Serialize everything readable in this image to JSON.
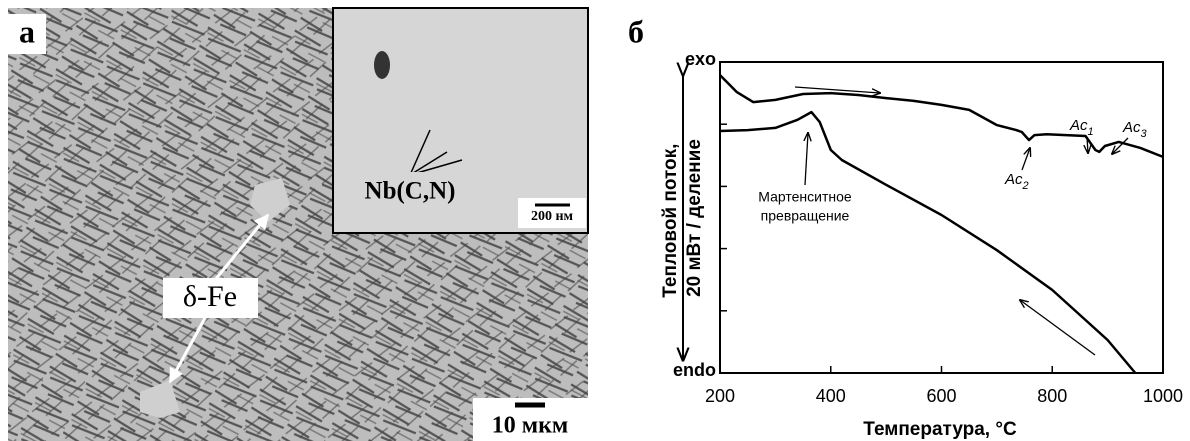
{
  "panel_a": {
    "label": "а",
    "phase_label": "δ-Fe",
    "precipitate_label": "Nb(C,N)",
    "inset_scale": "200 нм",
    "scale": "10 мкм"
  },
  "chart_data": {
    "type": "line",
    "panel_label": "б",
    "ylabel": [
      "Тепловой поток,",
      "20 мВт / деление"
    ],
    "xlabel": "Температура, °C",
    "xlim": [
      200,
      1000
    ],
    "xticks": [
      200,
      400,
      600,
      800,
      1000
    ],
    "ylim": [
      0,
      100
    ],
    "yticks": [
      {
        "value": 0,
        "label": "endo"
      },
      {
        "value": 100,
        "label": "exo"
      }
    ],
    "yminorticks": [
      20,
      40,
      60,
      80
    ],
    "series": [
      {
        "color": "#000000",
        "x": [
          200,
          230,
          260,
          300,
          350,
          400,
          450,
          500,
          550,
          600,
          650,
          700,
          735,
          745,
          758,
          768,
          790,
          860,
          878,
          885,
          895,
          920,
          960,
          1000
        ],
        "values": [
          95.8,
          90.4,
          87.1,
          87.8,
          89.7,
          90.0,
          89.4,
          88.4,
          87.5,
          86.2,
          84.6,
          79.7,
          78.1,
          77.5,
          74.9,
          76.5,
          76.8,
          76.2,
          71.7,
          71.1,
          73.0,
          74.3,
          72.3,
          69.5
        ]
      },
      {
        "color": "#000000",
        "x": [
          200,
          250,
          300,
          340,
          365,
          380,
          400,
          420,
          500,
          600,
          700,
          800,
          900,
          950
        ],
        "values": [
          77.8,
          78.1,
          78.8,
          81.4,
          83.9,
          80.7,
          71.7,
          68.5,
          60.5,
          50.8,
          39.5,
          26.7,
          10.6,
          0
        ]
      }
    ],
    "annotations": [
      {
        "text": "Мартенситное",
        "text2": "превращение"
      },
      {
        "text": "Ac",
        "sub": "1"
      },
      {
        "text": "Ac",
        "sub": "2"
      },
      {
        "text": "Ac",
        "sub": "3"
      }
    ]
  }
}
